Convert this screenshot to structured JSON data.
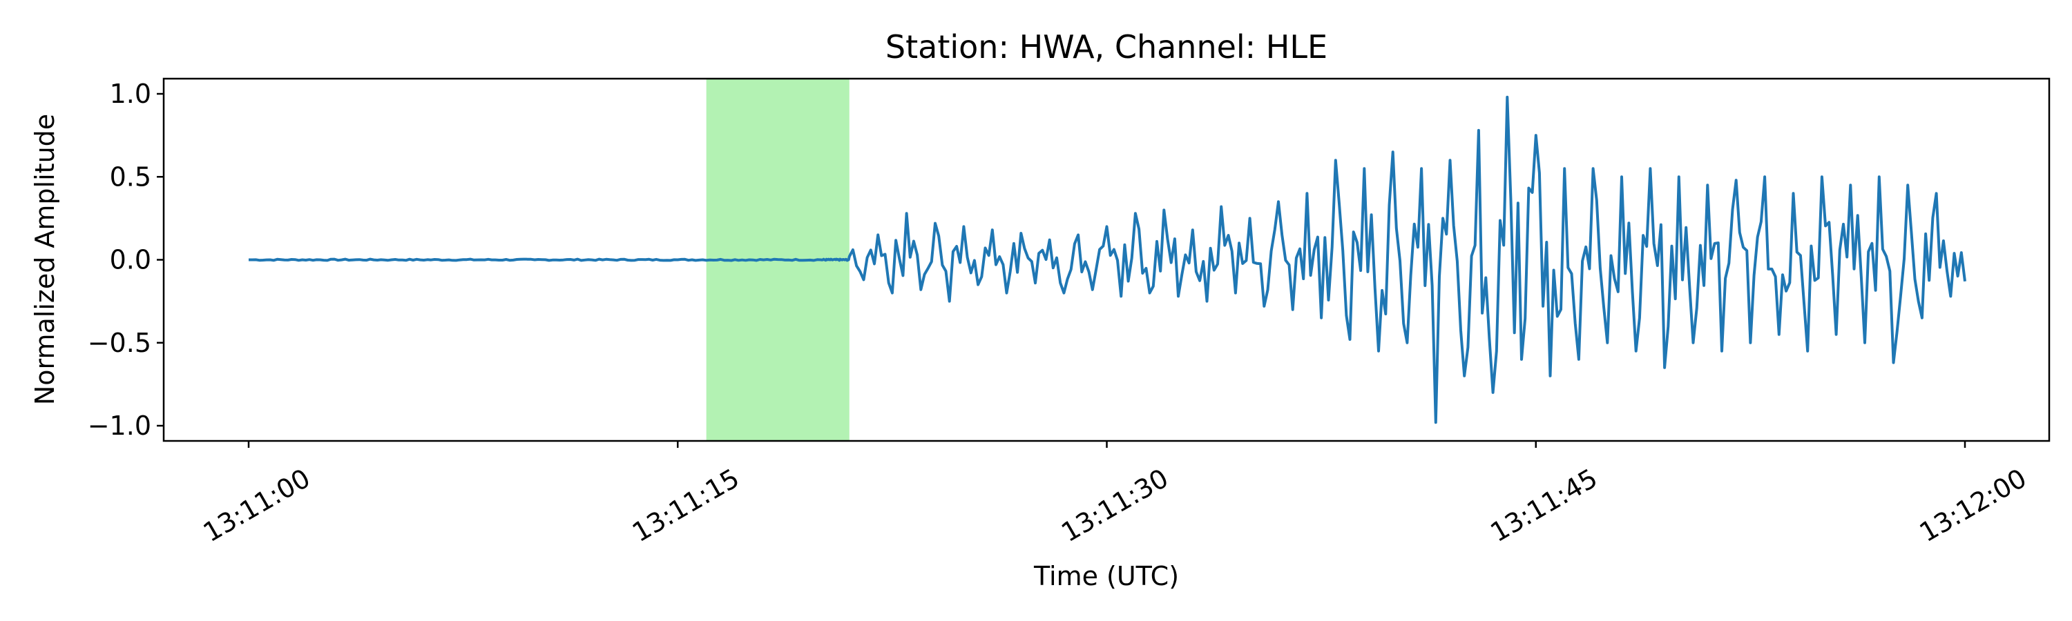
{
  "chart_data": {
    "type": "line",
    "title": "Station: HWA, Channel: HLE",
    "xlabel": "Time (UTC)",
    "ylabel": "Normalized Amplitude",
    "xlim": [
      "13:11:00",
      "13:12:00"
    ],
    "ylim": [
      -1.1,
      1.1
    ],
    "x_ticks": [
      "13:11:00",
      "13:11:15",
      "13:11:30",
      "13:11:45",
      "13:12:00"
    ],
    "y_ticks": [
      1.0,
      0.5,
      0.0,
      -0.5,
      -1.0
    ],
    "y_tick_labels": [
      "1.0",
      "0.5",
      "0.0",
      "−0.5",
      "−1.0"
    ],
    "grid": false,
    "highlight_span": {
      "start": "13:11:16",
      "end": "13:11:21",
      "color": "#b3f2b3"
    },
    "series": [
      {
        "color": "#1f77b4",
        "x": [
          "13:11:00",
          "13:11:05",
          "13:11:10",
          "13:11:15",
          "13:11:20",
          "13:11:21",
          "13:11:21.5",
          "13:11:22",
          "13:11:22.5",
          "13:11:23",
          "13:11:23.5",
          "13:11:24",
          "13:11:24.5",
          "13:11:25",
          "13:11:25.5",
          "13:11:26",
          "13:11:26.5",
          "13:11:27",
          "13:11:27.5",
          "13:11:28",
          "13:11:28.5",
          "13:11:29",
          "13:11:29.5",
          "13:11:30",
          "13:11:30.5",
          "13:11:31",
          "13:11:31.5",
          "13:11:32",
          "13:11:32.5",
          "13:11:33",
          "13:11:33.5",
          "13:11:34",
          "13:11:34.5",
          "13:11:35",
          "13:11:35.5",
          "13:11:36",
          "13:11:36.5",
          "13:11:37",
          "13:11:37.5",
          "13:11:38",
          "13:11:38.5",
          "13:11:39",
          "13:11:39.5",
          "13:11:40",
          "13:11:40.5",
          "13:11:41",
          "13:11:41.5",
          "13:11:42",
          "13:11:42.5",
          "13:11:43",
          "13:11:43.5",
          "13:11:44",
          "13:11:44.5",
          "13:11:45",
          "13:11:45.5",
          "13:11:46",
          "13:11:46.5",
          "13:11:47",
          "13:11:47.5",
          "13:11:48",
          "13:11:48.5",
          "13:11:49",
          "13:11:49.5",
          "13:11:50",
          "13:11:50.5",
          "13:11:51",
          "13:11:51.5",
          "13:11:52",
          "13:11:52.5",
          "13:11:53",
          "13:11:53.5",
          "13:11:54",
          "13:11:54.5",
          "13:11:55",
          "13:11:55.5",
          "13:11:56",
          "13:11:56.5",
          "13:11:57",
          "13:11:57.5",
          "13:11:58",
          "13:11:58.5",
          "13:11:59",
          "13:11:59.5",
          "13:12:00"
        ],
        "y": [
          0.0,
          0.0,
          0.0,
          0.0,
          0.0,
          0.02,
          -0.12,
          0.15,
          -0.2,
          0.28,
          -0.18,
          0.22,
          -0.25,
          0.2,
          -0.15,
          0.18,
          -0.2,
          0.16,
          -0.14,
          0.12,
          -0.2,
          0.15,
          -0.18,
          0.2,
          -0.22,
          0.28,
          -0.2,
          0.3,
          -0.22,
          0.18,
          -0.25,
          0.32,
          -0.2,
          0.25,
          -0.28,
          0.35,
          -0.3,
          0.4,
          -0.35,
          0.6,
          -0.48,
          0.55,
          -0.55,
          0.65,
          -0.5,
          0.55,
          -0.98,
          0.6,
          -0.7,
          0.78,
          -0.8,
          0.98,
          -0.6,
          0.75,
          -0.7,
          0.55,
          -0.6,
          0.55,
          -0.5,
          0.5,
          -0.55,
          0.55,
          -0.65,
          0.5,
          -0.5,
          0.45,
          -0.55,
          0.48,
          -0.5,
          0.5,
          -0.45,
          0.4,
          -0.55,
          0.5,
          -0.45,
          0.45,
          -0.5,
          0.5,
          -0.62,
          0.45,
          -0.35,
          0.4,
          -0.22,
          -0.13
        ]
      }
    ]
  }
}
